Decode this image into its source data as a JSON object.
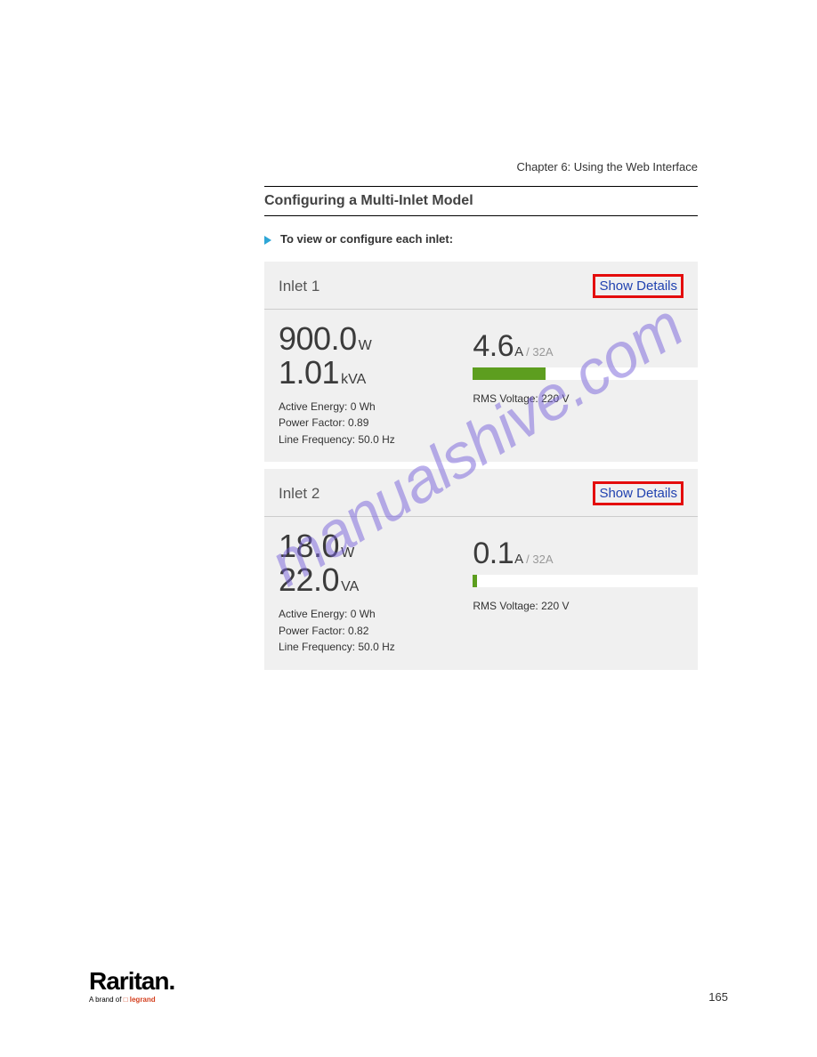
{
  "chapter": "Chapter 6: Using the Web Interface",
  "sectionTitle": "Configuring a Multi-Inlet Model",
  "instruction": "To view or configure each inlet:",
  "inlets": [
    {
      "title": "Inlet 1",
      "showDetails": "Show Details",
      "power_value": "900.0",
      "power_unit": "W",
      "apparent_value": "1.01",
      "apparent_unit": "kVA",
      "activeEnergy": "Active Energy: 0 Wh",
      "powerFactor": "Power Factor: 0.89",
      "lineFreq": "Line Frequency: 50.0 Hz",
      "amp_value": "4.6",
      "amp_unit": "A",
      "amp_max": " / 32A",
      "amp_fill_pct": 29,
      "amp_fill_color": "#5d9e1f",
      "rmsVoltage": "RMS Voltage: 220 V"
    },
    {
      "title": "Inlet 2",
      "showDetails": "Show Details",
      "power_value": "18.0",
      "power_unit": "W",
      "apparent_value": "22.0",
      "apparent_unit": "VA",
      "activeEnergy": "Active Energy: 0 Wh",
      "powerFactor": "Power Factor: 0.82",
      "lineFreq": "Line Frequency: 50.0 Hz",
      "amp_value": "0.1",
      "amp_unit": "A",
      "amp_max": " / 32A",
      "amp_fill_pct": 1.5,
      "amp_fill_color": "#5d9e1f",
      "rmsVoltage": "RMS Voltage: 220 V"
    }
  ],
  "watermark": "manualshive.com",
  "logo": {
    "main": "Raritan.",
    "sub_prefix": "A brand of ",
    "sub_brand": "□ legrand"
  },
  "pageNum": "165"
}
